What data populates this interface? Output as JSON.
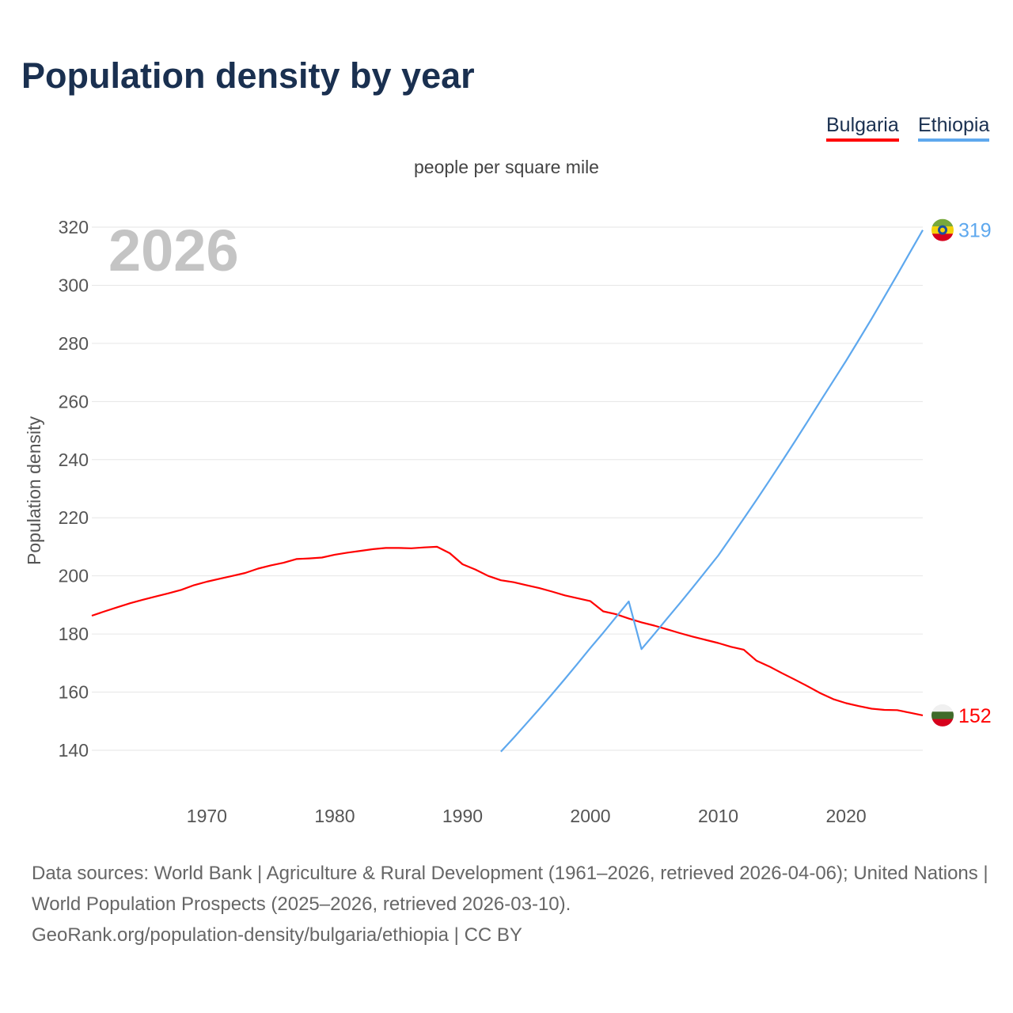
{
  "title": "Population density by year",
  "subtitle": "people per square mile",
  "footer": {
    "sources": "Data sources: World Bank | Agriculture & Rural Development (1961–2026, retrieved 2026-04-06); United Nations | World Population Prospects (2025–2026, retrieved 2026-03-10).",
    "link": "GeoRank.org/population-density/bulgaria/ethiopia | CC BY"
  },
  "chart_data": {
    "type": "line",
    "title": "Population density by year",
    "subtitle": "people per square mile",
    "xlabel": "",
    "ylabel": "Population density",
    "year_label": "2026",
    "xlim": [
      1961,
      2026
    ],
    "ylim": [
      140,
      320
    ],
    "xticks": [
      1970,
      1980,
      1990,
      2000,
      2010,
      2020
    ],
    "yticks": [
      140,
      160,
      180,
      200,
      220,
      240,
      260,
      280,
      300,
      320
    ],
    "grid": true,
    "legend_position": "top-right",
    "series": [
      {
        "name": "Bulgaria",
        "color": "#ff0000",
        "end_label": "152",
        "flag": "bulgaria-flag",
        "x_start": 1961,
        "values": [
          186.3,
          187.8,
          189.2,
          190.6,
          191.8,
          192.9,
          194.0,
          195.2,
          196.8,
          198.0,
          199.0,
          200.0,
          201.0,
          202.5,
          203.6,
          204.5,
          205.8,
          206.0,
          206.3,
          207.3,
          208.0,
          208.6,
          209.2,
          209.6,
          209.6,
          209.5,
          209.8,
          210.0,
          207.8,
          204.0,
          202.2,
          200.0,
          198.5,
          197.8,
          196.8,
          195.8,
          194.6,
          193.3,
          192.3,
          191.3,
          187.8,
          186.8,
          185.3,
          184.0,
          182.9,
          181.6,
          180.3,
          179.1,
          178.0,
          176.9,
          175.6,
          174.6,
          170.8,
          168.8,
          166.5,
          164.3,
          162.0,
          159.6,
          157.6,
          156.2,
          155.2,
          154.3,
          153.9,
          153.8,
          152.9,
          152.0
        ]
      },
      {
        "name": "Ethiopia",
        "color": "#5ea8ee",
        "end_label": "319",
        "flag": "ethiopia-flag",
        "x_start": 1993,
        "values": [
          139.5,
          144.3,
          149.2,
          154.2,
          159.3,
          164.5,
          169.8,
          175.2,
          180.4,
          185.8,
          191.2,
          174.8,
          180.0,
          185.3,
          190.6,
          196.0,
          201.5,
          207.0,
          213.3,
          219.7,
          226.2,
          232.8,
          239.5,
          246.3,
          253.2,
          260.2,
          267.1,
          274.0,
          281.2,
          288.5,
          296.0,
          303.6,
          311.3,
          319.0
        ]
      }
    ]
  }
}
